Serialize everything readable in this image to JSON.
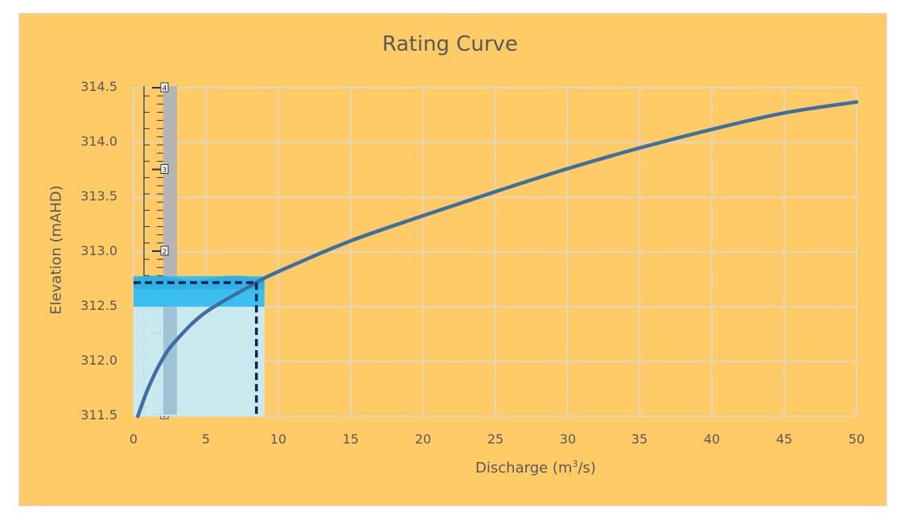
{
  "chart_data": {
    "type": "line",
    "title": "Rating Curve",
    "xlabel": "Discharge (m3/s)",
    "xlabel_parts": {
      "pre": "Discharge (m",
      "sup": "3",
      "post": "/s)"
    },
    "ylabel": "Elevation (mAHD)",
    "xlim": [
      0,
      50
    ],
    "ylim": [
      311.5,
      314.5
    ],
    "x_ticks": [
      "0",
      "5",
      "10",
      "15",
      "20",
      "25",
      "30",
      "35",
      "40",
      "45",
      "50"
    ],
    "y_ticks": [
      "314.5",
      "314.0",
      "313.5",
      "313.0",
      "312.5",
      "312.0",
      "311.5"
    ],
    "grid": true,
    "legend": null,
    "series": [
      {
        "name": "Rating Curve",
        "color": "#3E6FA3",
        "x": [
          0.3,
          1,
          2,
          3,
          5,
          8.5,
          10,
          15,
          20,
          25,
          30,
          35,
          40,
          45,
          50
        ],
        "y": [
          311.5,
          311.75,
          312.02,
          312.2,
          312.45,
          312.72,
          312.82,
          313.1,
          313.33,
          313.55,
          313.76,
          313.95,
          314.12,
          314.27,
          314.37
        ]
      }
    ],
    "annotations": {
      "reading_point": {
        "x": 8.5,
        "y": 312.72,
        "style": "dashed",
        "color": "#0B2555"
      },
      "staff_gauge_labels": [
        "4",
        "3",
        "2",
        "1",
        "0"
      ],
      "water_fill_color": "#C6ECFA",
      "water_surface_color": "#3BBFEF"
    }
  },
  "colors": {
    "background": "#FECB66",
    "gridline": "#D9D9D9",
    "text": "#595959"
  }
}
